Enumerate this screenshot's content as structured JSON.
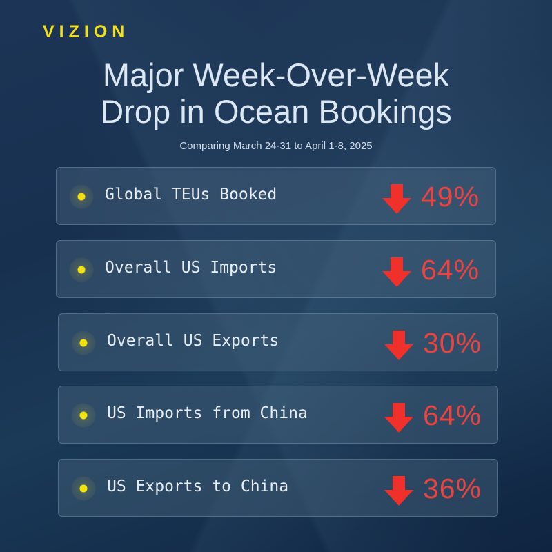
{
  "logo": "VIZION",
  "title_line1": "Major Week-Over-Week",
  "title_line2": "Drop in Ocean Bookings",
  "subtitle": "Comparing March 24-31 to April 1-8, 2025",
  "colors": {
    "accent": "#f2df1e",
    "down": "#ea4340",
    "arrow": "#f0302a"
  },
  "items": [
    {
      "label": "Global TEUs Booked",
      "icon": "arrow-down-icon",
      "value": "49%"
    },
    {
      "label": "Overall US Imports",
      "icon": "arrow-down-icon",
      "value": "64%"
    },
    {
      "label": "Overall US Exports",
      "icon": "arrow-down-icon",
      "value": "30%"
    },
    {
      "label": "US Imports from China",
      "icon": "arrow-down-icon",
      "value": "64%"
    },
    {
      "label": "US Exports to China",
      "icon": "arrow-down-icon",
      "value": "36%"
    }
  ]
}
